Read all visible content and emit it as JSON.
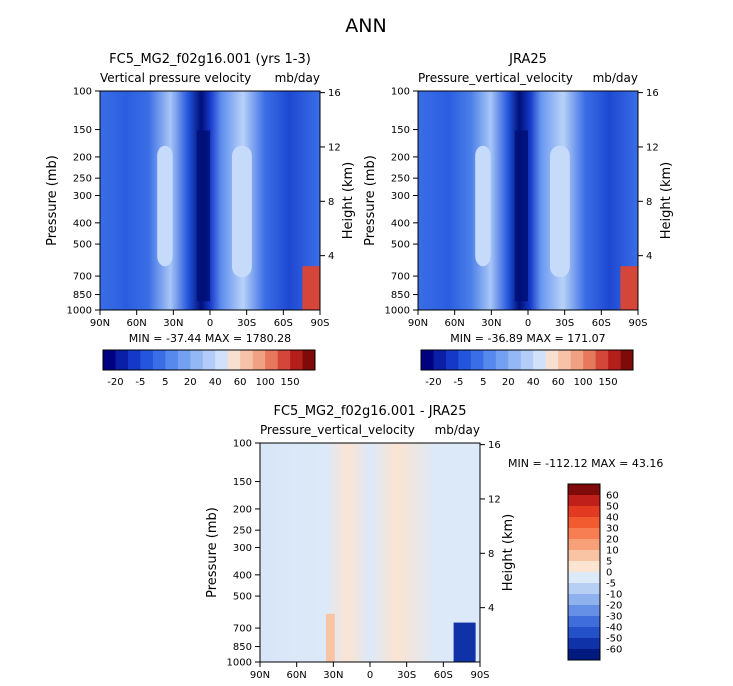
{
  "page_title": "ANN",
  "chart_data": [
    {
      "type": "heatmap",
      "title": "FC5_MG2_f02g16.001 (yrs 1-3)",
      "subtitle_left": "Vertical pressure velocity",
      "subtitle_right": "mb/day",
      "xlabel": "",
      "ylabel": "Pressure (mb)",
      "ylabel_right": "Height (km)",
      "x_ticks": [
        "90N",
        "60N",
        "30N",
        "0",
        "30S",
        "60S",
        "90S"
      ],
      "y_ticks": [
        "100",
        "150",
        "200",
        "250",
        "300",
        "400",
        "500",
        "700",
        "850",
        "1000"
      ],
      "y_ticks_right": [
        "16",
        "12",
        "8",
        "4"
      ],
      "stats": "MIN = -37.44   MAX = 1780.28",
      "min": -37.44,
      "max": 1780.28,
      "colorbar_labels": [
        "-20",
        "-5",
        "5",
        "20",
        "40",
        "60",
        "100",
        "150"
      ],
      "colors": [
        "#000080",
        "#0a1fa6",
        "#1538c8",
        "#2456dd",
        "#3a6ee6",
        "#5688ee",
        "#74a0f2",
        "#93b8f5",
        "#b3cdf8",
        "#d2e1fb",
        "#f8e0d0",
        "#f6c2a8",
        "#f0a183",
        "#e6785c",
        "#d4463a",
        "#b51f1a",
        "#7e0a0a"
      ]
    },
    {
      "type": "heatmap",
      "title": "JRA25",
      "subtitle_left": "Pressure_vertical_velocity",
      "subtitle_right": "mb/day",
      "xlabel": "",
      "ylabel": "Pressure (mb)",
      "ylabel_right": "Height (km)",
      "x_ticks": [
        "90N",
        "60N",
        "30N",
        "0",
        "30S",
        "60S",
        "90S"
      ],
      "y_ticks": [
        "100",
        "150",
        "200",
        "250",
        "300",
        "400",
        "500",
        "700",
        "850",
        "1000"
      ],
      "y_ticks_right": [
        "16",
        "12",
        "8",
        "4"
      ],
      "stats": "MIN = -36.89   MAX = 171.07",
      "min": -36.89,
      "max": 171.07,
      "colorbar_labels": [
        "-20",
        "-5",
        "5",
        "20",
        "40",
        "60",
        "100",
        "150"
      ]
    },
    {
      "type": "heatmap",
      "title": "FC5_MG2_f02g16.001 - JRA25",
      "subtitle_left": "Pressure_vertical_velocity",
      "subtitle_right": "mb/day",
      "xlabel": "",
      "ylabel": "Pressure (mb)",
      "ylabel_right": "Height (km)",
      "x_ticks": [
        "90N",
        "60N",
        "30N",
        "0",
        "30S",
        "60S",
        "90S"
      ],
      "y_ticks": [
        "100",
        "150",
        "200",
        "250",
        "300",
        "400",
        "500",
        "700",
        "850",
        "1000"
      ],
      "y_ticks_right": [
        "16",
        "12",
        "8",
        "4"
      ],
      "stats": "MIN = -112.12   MAX =  43.16",
      "min": -112.12,
      "max": 43.16,
      "colorbar_labels": [
        "60",
        "50",
        "40",
        "30",
        "20",
        "10",
        "5",
        "0",
        "-5",
        "-10",
        "-20",
        "-30",
        "-40",
        "-50",
        "-60"
      ],
      "colors": [
        "#7e0a0a",
        "#c0201a",
        "#e23a20",
        "#f25a30",
        "#f77e52",
        "#f8a078",
        "#f9c4a4",
        "#fbe4d2",
        "#dce9f8",
        "#b8cff4",
        "#8fb2ee",
        "#6690e6",
        "#3f6edc",
        "#2450c8",
        "#1032a8",
        "#001a80"
      ]
    }
  ]
}
